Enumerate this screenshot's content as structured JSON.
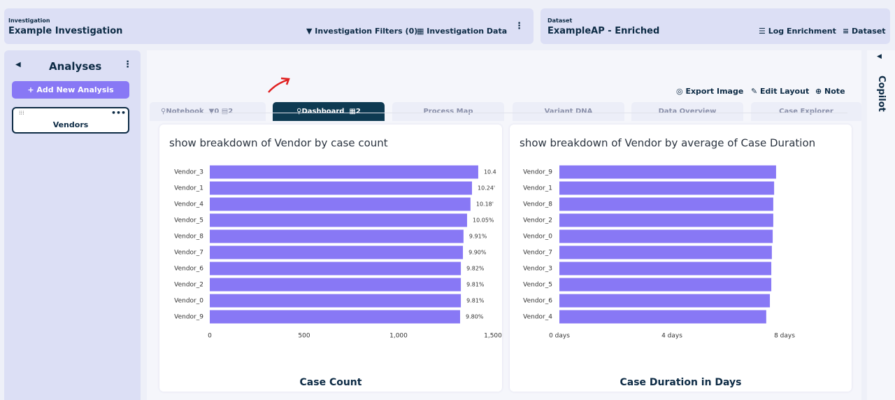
{
  "header": {
    "investigation_caption": "Investigation",
    "investigation_name": "Example Investigation",
    "filters": "Investigation Filters (0)",
    "data": "Investigation Data",
    "dataset_caption": "Dataset",
    "dataset_name": "ExampleAP - Enriched",
    "log_enrichment": "Log Enrichment",
    "dataset": "Dataset"
  },
  "sidebar": {
    "title": "Analyses",
    "add_button": "+ Add New Analysis",
    "analyses": [
      "Vendors"
    ]
  },
  "tabs": {
    "notebook": {
      "label": "Notebook",
      "filters": "0",
      "pages": "2"
    },
    "dashboard": {
      "label": "Dashboard",
      "count": "2"
    },
    "others": [
      "Process Map",
      "Variant DNA",
      "Data Overview",
      "Case Explorer"
    ]
  },
  "toolbar": {
    "export": "Export Image",
    "edit": "Edit Layout",
    "note": "Note"
  },
  "copilot": "Copilot",
  "chart_data": [
    {
      "type": "bar",
      "orientation": "horizontal",
      "title": "show breakdown of Vendor by case count",
      "x_label": "Case Count",
      "color": "#8878f5",
      "categories": [
        "Vendor_3",
        "Vendor_1",
        "Vendor_4",
        "Vendor_5",
        "Vendor_8",
        "Vendor_7",
        "Vendor_6",
        "Vendor_2",
        "Vendor_0",
        "Vendor_9"
      ],
      "values": [
        1422,
        1389,
        1381,
        1363,
        1344,
        1341,
        1330,
        1330,
        1330,
        1326
      ],
      "value_labels": [
        "10.4",
        "10.24'",
        "10.18'",
        "10.05%",
        "9.91%",
        "9.90%",
        "9.82%",
        "9.81%",
        "9.81%",
        "9.80%"
      ],
      "xlim": [
        0,
        1500
      ],
      "xticks": [
        0,
        500,
        {
          "value": 1000,
          "label": "1,000"
        },
        {
          "value": 1500,
          "label": "1,500"
        }
      ],
      "grid": false
    },
    {
      "type": "bar",
      "orientation": "horizontal",
      "title": "show breakdown of Vendor by average of Case Duration",
      "x_label": "Case Duration in Days",
      "color": "#8878f5",
      "categories": [
        "Vendor_9",
        "Vendor_1",
        "Vendor_8",
        "Vendor_2",
        "Vendor_0",
        "Vendor_7",
        "Vendor_3",
        "Vendor_5",
        "Vendor_6",
        "Vendor_4"
      ],
      "values": [
        7.7,
        7.63,
        7.6,
        7.6,
        7.58,
        7.55,
        7.53,
        7.53,
        7.48,
        7.35
      ],
      "xlim": [
        0,
        8
      ],
      "xticks": [
        {
          "value": 0,
          "label": "0 days"
        },
        {
          "value": 4,
          "label": "4 days"
        },
        {
          "value": 8,
          "label": "8 days"
        }
      ],
      "grid": false
    }
  ]
}
